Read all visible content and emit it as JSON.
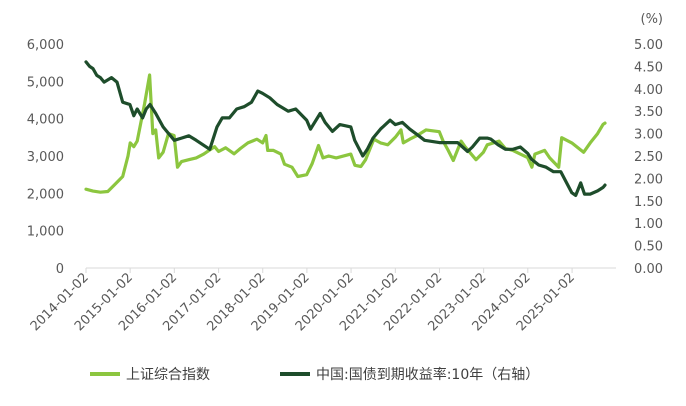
{
  "chart_data": {
    "type": "line",
    "title": "",
    "xlabel": "",
    "ylabel": "",
    "y2label": "(%)",
    "xlim": [
      "2014-01-02",
      "2025-12-31"
    ],
    "ylim": [
      0,
      6000
    ],
    "y2lim": [
      0,
      5.0
    ],
    "x_ticks": [
      "2014-01-02",
      "2015-01-02",
      "2016-01-02",
      "2017-01-02",
      "2018-01-02",
      "2019-01-02",
      "2020-01-02",
      "2021-01-02",
      "2022-01-02",
      "2023-01-02",
      "2024-01-02",
      "2025-01-02"
    ],
    "y_ticks": [
      "0",
      "1,000",
      "2,000",
      "3,000",
      "4,000",
      "5,000",
      "6,000"
    ],
    "y2_ticks": [
      "0.00",
      "0.50",
      "1.00",
      "1.50",
      "2.00",
      "2.50",
      "3.00",
      "3.50",
      "4.00",
      "4.50",
      "5.00"
    ],
    "legend_position": "bottom",
    "series": [
      {
        "name": "上证综合指数",
        "axis": "left",
        "color": "#8CC63F",
        "points": [
          [
            "2014-01-02",
            2110
          ],
          [
            "2014-03-01",
            2060
          ],
          [
            "2014-05-01",
            2030
          ],
          [
            "2014-07-01",
            2050
          ],
          [
            "2014-09-01",
            2250
          ],
          [
            "2014-11-01",
            2450
          ],
          [
            "2014-12-15",
            3000
          ],
          [
            "2015-01-02",
            3350
          ],
          [
            "2015-02-01",
            3250
          ],
          [
            "2015-03-01",
            3400
          ],
          [
            "2015-04-01",
            3900
          ],
          [
            "2015-05-01",
            4400
          ],
          [
            "2015-06-12",
            5170
          ],
          [
            "2015-07-08",
            3600
          ],
          [
            "2015-08-01",
            3700
          ],
          [
            "2015-08-26",
            2950
          ],
          [
            "2015-10-01",
            3100
          ],
          [
            "2015-11-15",
            3600
          ],
          [
            "2015-12-31",
            3550
          ],
          [
            "2016-01-28",
            2700
          ],
          [
            "2016-03-01",
            2850
          ],
          [
            "2016-05-01",
            2900
          ],
          [
            "2016-07-01",
            2950
          ],
          [
            "2016-09-01",
            3050
          ],
          [
            "2016-11-30",
            3250
          ],
          [
            "2017-01-02",
            3120
          ],
          [
            "2017-03-01",
            3220
          ],
          [
            "2017-05-10",
            3060
          ],
          [
            "2017-07-01",
            3200
          ],
          [
            "2017-09-01",
            3350
          ],
          [
            "2017-11-15",
            3450
          ],
          [
            "2018-01-02",
            3350
          ],
          [
            "2018-01-29",
            3550
          ],
          [
            "2018-02-12",
            3150
          ],
          [
            "2018-04-01",
            3150
          ],
          [
            "2018-06-01",
            3050
          ],
          [
            "2018-07-01",
            2780
          ],
          [
            "2018-09-01",
            2700
          ],
          [
            "2018-10-19",
            2450
          ],
          [
            "2018-12-31",
            2500
          ],
          [
            "2019-02-15",
            2800
          ],
          [
            "2019-04-08",
            3280
          ],
          [
            "2019-05-15",
            2950
          ],
          [
            "2019-07-01",
            3000
          ],
          [
            "2019-09-01",
            2950
          ],
          [
            "2019-12-31",
            3050
          ],
          [
            "2020-02-03",
            2750
          ],
          [
            "2020-03-23",
            2720
          ],
          [
            "2020-05-01",
            2900
          ],
          [
            "2020-07-09",
            3450
          ],
          [
            "2020-09-01",
            3350
          ],
          [
            "2020-11-01",
            3300
          ],
          [
            "2021-01-02",
            3500
          ],
          [
            "2021-02-18",
            3700
          ],
          [
            "2021-03-09",
            3350
          ],
          [
            "2021-05-01",
            3450
          ],
          [
            "2021-07-01",
            3550
          ],
          [
            "2021-09-13",
            3700
          ],
          [
            "2021-12-31",
            3650
          ],
          [
            "2022-02-01",
            3400
          ],
          [
            "2022-03-15",
            3150
          ],
          [
            "2022-04-26",
            2880
          ],
          [
            "2022-06-30",
            3400
          ],
          [
            "2022-08-01",
            3250
          ],
          [
            "2022-10-31",
            2900
          ],
          [
            "2022-12-31",
            3100
          ],
          [
            "2023-02-01",
            3300
          ],
          [
            "2023-05-09",
            3400
          ],
          [
            "2023-07-01",
            3200
          ],
          [
            "2023-09-01",
            3150
          ],
          [
            "2023-11-01",
            3050
          ],
          [
            "2023-12-31",
            2960
          ],
          [
            "2024-02-05",
            2700
          ],
          [
            "2024-03-01",
            3050
          ],
          [
            "2024-05-20",
            3150
          ],
          [
            "2024-07-01",
            2950
          ],
          [
            "2024-09-13",
            2700
          ],
          [
            "2024-10-08",
            3490
          ],
          [
            "2024-12-31",
            3350
          ],
          [
            "2025-04-07",
            3100
          ],
          [
            "2025-06-01",
            3350
          ],
          [
            "2025-08-01",
            3600
          ],
          [
            "2025-09-15",
            3850
          ],
          [
            "2025-10-01",
            3880
          ]
        ]
      },
      {
        "name": "中国:国债到期收益率:10年（右轴）",
        "axis": "right",
        "color": "#1E4D2B",
        "points": [
          [
            "2014-01-02",
            4.6
          ],
          [
            "2014-02-01",
            4.5
          ],
          [
            "2014-03-01",
            4.45
          ],
          [
            "2014-04-01",
            4.3
          ],
          [
            "2014-05-01",
            4.25
          ],
          [
            "2014-06-01",
            4.15
          ],
          [
            "2014-08-01",
            4.25
          ],
          [
            "2014-09-15",
            4.15
          ],
          [
            "2014-11-01",
            3.7
          ],
          [
            "2014-12-31",
            3.65
          ],
          [
            "2015-02-01",
            3.4
          ],
          [
            "2015-03-01",
            3.55
          ],
          [
            "2015-04-15",
            3.35
          ],
          [
            "2015-05-15",
            3.55
          ],
          [
            "2015-06-15",
            3.65
          ],
          [
            "2015-08-01",
            3.45
          ],
          [
            "2015-10-01",
            3.15
          ],
          [
            "2015-11-01",
            3.05
          ],
          [
            "2016-01-02",
            2.85
          ],
          [
            "2016-03-01",
            2.9
          ],
          [
            "2016-05-01",
            2.95
          ],
          [
            "2016-07-01",
            2.85
          ],
          [
            "2016-10-21",
            2.65
          ],
          [
            "2016-12-20",
            3.15
          ],
          [
            "2017-02-01",
            3.35
          ],
          [
            "2017-04-01",
            3.35
          ],
          [
            "2017-06-01",
            3.55
          ],
          [
            "2017-08-01",
            3.6
          ],
          [
            "2017-10-01",
            3.7
          ],
          [
            "2017-11-22",
            3.95
          ],
          [
            "2017-12-31",
            3.9
          ],
          [
            "2018-03-01",
            3.8
          ],
          [
            "2018-05-01",
            3.65
          ],
          [
            "2018-08-01",
            3.5
          ],
          [
            "2018-10-01",
            3.55
          ],
          [
            "2018-12-31",
            3.3
          ],
          [
            "2019-02-01",
            3.1
          ],
          [
            "2019-04-22",
            3.45
          ],
          [
            "2019-06-01",
            3.25
          ],
          [
            "2019-08-01",
            3.05
          ],
          [
            "2019-10-01",
            3.2
          ],
          [
            "2019-12-31",
            3.15
          ],
          [
            "2020-02-01",
            2.85
          ],
          [
            "2020-04-08",
            2.5
          ],
          [
            "2020-05-15",
            2.65
          ],
          [
            "2020-07-01",
            2.9
          ],
          [
            "2020-09-01",
            3.1
          ],
          [
            "2020-11-20",
            3.3
          ],
          [
            "2021-01-02",
            3.2
          ],
          [
            "2021-03-01",
            3.25
          ],
          [
            "2021-05-01",
            3.1
          ],
          [
            "2021-07-15",
            2.95
          ],
          [
            "2021-09-01",
            2.85
          ],
          [
            "2021-12-31",
            2.8
          ],
          [
            "2022-03-01",
            2.8
          ],
          [
            "2022-06-01",
            2.8
          ],
          [
            "2022-08-22",
            2.6
          ],
          [
            "2022-10-01",
            2.7
          ],
          [
            "2022-11-30",
            2.9
          ],
          [
            "2023-01-31",
            2.9
          ],
          [
            "2023-03-01",
            2.88
          ],
          [
            "2023-05-01",
            2.75
          ],
          [
            "2023-07-01",
            2.65
          ],
          [
            "2023-09-01",
            2.65
          ],
          [
            "2023-11-01",
            2.7
          ],
          [
            "2023-12-31",
            2.56
          ],
          [
            "2024-02-01",
            2.43
          ],
          [
            "2024-04-01",
            2.3
          ],
          [
            "2024-06-01",
            2.25
          ],
          [
            "2024-08-01",
            2.15
          ],
          [
            "2024-10-01",
            2.15
          ],
          [
            "2024-12-31",
            1.68
          ],
          [
            "2025-02-01",
            1.62
          ],
          [
            "2025-03-14",
            1.9
          ],
          [
            "2025-04-15",
            1.65
          ],
          [
            "2025-06-01",
            1.65
          ],
          [
            "2025-08-01",
            1.72
          ],
          [
            "2025-09-15",
            1.8
          ],
          [
            "2025-10-01",
            1.85
          ]
        ]
      }
    ]
  }
}
